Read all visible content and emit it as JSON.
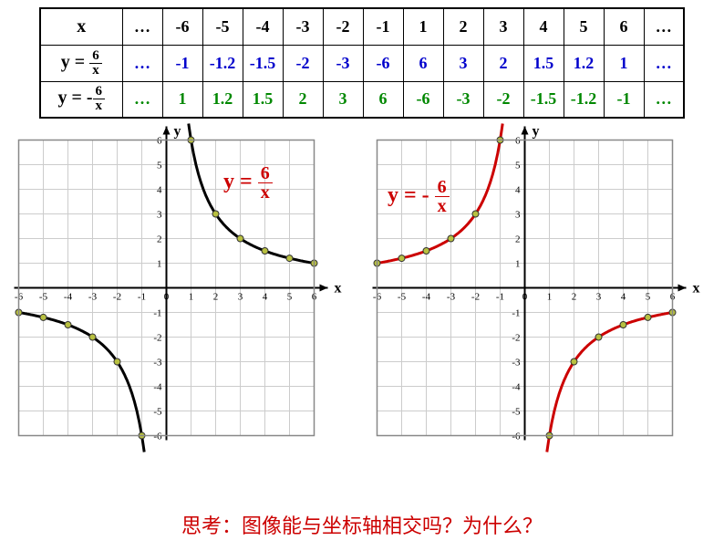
{
  "table": {
    "x_label": "x",
    "y1_label_prefix": "y = ",
    "y1_frac_num": "6",
    "y1_frac_den": "x",
    "y2_label_prefix": "y = -",
    "y2_frac_num": "6",
    "y2_frac_den": "x",
    "x_values": [
      "…",
      "-6",
      "-5",
      "-4",
      "-3",
      "-2",
      "-1",
      "1",
      "2",
      "3",
      "4",
      "5",
      "6",
      "…"
    ],
    "y1_values": [
      "…",
      "-1",
      "-1.2",
      "-1.5",
      "-2",
      "-3",
      "-6",
      "6",
      "3",
      "2",
      "1.5",
      "1.2",
      "1",
      "…"
    ],
    "y2_values": [
      "…",
      "1",
      "1.2",
      "1.5",
      "2",
      "3",
      "6",
      "-6",
      "-3",
      "-2",
      "-1.5",
      "-1.2",
      "-1",
      "…"
    ],
    "x_color": "#000000",
    "y1_color": "#0000cc",
    "y2_color": "#008800",
    "border_color": "#000000",
    "fontsize": 18
  },
  "chart1": {
    "type": "scatter+line",
    "curve_color": "#000000",
    "curve_width": 3,
    "marker_fill": "#b8c040",
    "marker_stroke": "#333333",
    "marker_radius": 3.5,
    "grid_color": "#cccccc",
    "axis_color": "#000000",
    "background_color": "#ffffff",
    "xlim": [
      -6,
      6
    ],
    "ylim": [
      -6,
      6
    ],
    "tick_step": 1,
    "x_ticks": [
      -6,
      -5,
      -4,
      -3,
      -2,
      -1,
      0,
      1,
      2,
      3,
      4,
      5,
      6
    ],
    "y_ticks": [
      -6,
      -5,
      -4,
      -3,
      -2,
      -1,
      1,
      2,
      3,
      4,
      5,
      6
    ],
    "x_axis_label": "x",
    "y_axis_label": "y",
    "label_fontsize": 16,
    "tick_fontsize": 11,
    "points": [
      [
        -6,
        -1
      ],
      [
        -5,
        -1.2
      ],
      [
        -4,
        -1.5
      ],
      [
        -3,
        -2
      ],
      [
        -2,
        -3
      ],
      [
        -1,
        -6
      ],
      [
        1,
        6
      ],
      [
        2,
        3
      ],
      [
        3,
        2
      ],
      [
        4,
        1.5
      ],
      [
        5,
        1.2
      ],
      [
        6,
        1
      ]
    ],
    "equation_color": "#cc0000",
    "equation_text": "y = ",
    "equation_num": "6",
    "equation_den": "x"
  },
  "chart2": {
    "type": "scatter+line",
    "curve_color": "#cc0000",
    "curve_width": 3,
    "marker_fill": "#b8c040",
    "marker_stroke": "#333333",
    "marker_radius": 3.5,
    "grid_color": "#cccccc",
    "axis_color": "#000000",
    "background_color": "#ffffff",
    "xlim": [
      -6,
      6
    ],
    "ylim": [
      -6,
      6
    ],
    "tick_step": 1,
    "x_ticks": [
      -6,
      -5,
      -4,
      -3,
      -2,
      -1,
      0,
      1,
      2,
      3,
      4,
      5,
      6
    ],
    "y_ticks": [
      -6,
      -5,
      -4,
      -3,
      -2,
      -1,
      1,
      2,
      3,
      4,
      5,
      6
    ],
    "x_axis_label": "x",
    "y_axis_label": "y",
    "label_fontsize": 16,
    "tick_fontsize": 11,
    "points": [
      [
        -6,
        1
      ],
      [
        -5,
        1.2
      ],
      [
        -4,
        1.5
      ],
      [
        -3,
        2
      ],
      [
        -2,
        3
      ],
      [
        -1,
        6
      ],
      [
        1,
        -6
      ],
      [
        2,
        -3
      ],
      [
        3,
        -2
      ],
      [
        4,
        -1.5
      ],
      [
        5,
        -1.2
      ],
      [
        6,
        -1
      ]
    ],
    "equation_color": "#cc0000",
    "equation_text": "y = - ",
    "equation_num": "6",
    "equation_den": "x"
  },
  "question_text": "思考：图像能与坐标轴相交吗？为什么？",
  "question_color": "#cc0000",
  "question_fontsize": 22
}
